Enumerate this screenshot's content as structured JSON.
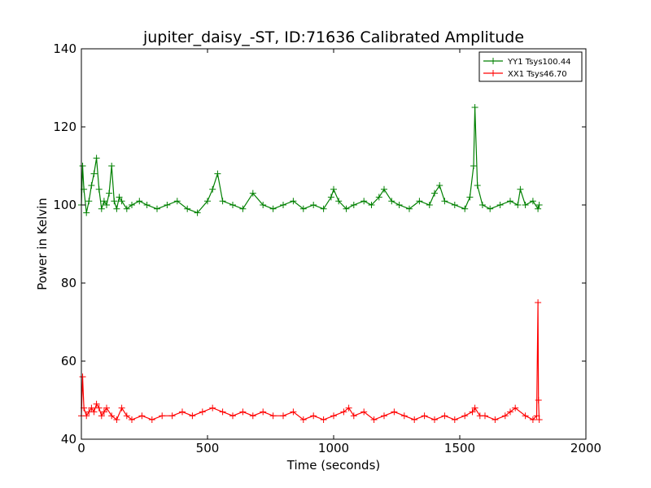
{
  "chart_data": {
    "type": "line",
    "title": "jupiter_daisy_-ST, ID:71636 Calibrated Amplitude",
    "xlabel": "Time (seconds)",
    "ylabel": "Power in Kelvin",
    "xlim": [
      0,
      2000
    ],
    "ylim": [
      40,
      140
    ],
    "xticks": [
      "0",
      "500",
      "1000",
      "1500",
      "2000"
    ],
    "yticks": [
      "40",
      "60",
      "80",
      "100",
      "120",
      "140"
    ],
    "grid": false,
    "legend_position": "top-right",
    "marker": "+",
    "series": [
      {
        "name": "YY1 Tsys100.44",
        "color": "#008000",
        "x": [
          0,
          5,
          10,
          20,
          30,
          40,
          50,
          60,
          70,
          80,
          90,
          100,
          110,
          120,
          130,
          140,
          150,
          160,
          180,
          200,
          230,
          260,
          300,
          340,
          380,
          420,
          460,
          500,
          520,
          540,
          560,
          600,
          640,
          680,
          720,
          760,
          800,
          840,
          880,
          920,
          960,
          990,
          1000,
          1020,
          1050,
          1080,
          1120,
          1150,
          1180,
          1200,
          1230,
          1260,
          1300,
          1340,
          1380,
          1400,
          1420,
          1440,
          1480,
          1520,
          1540,
          1555,
          1560,
          1570,
          1590,
          1620,
          1660,
          1700,
          1730,
          1740,
          1760,
          1790,
          1810,
          1815
        ],
        "y": [
          100,
          110,
          104,
          98,
          101,
          105,
          108,
          112,
          104,
          99,
          101,
          100,
          103,
          110,
          101,
          99,
          102,
          101,
          99,
          100,
          101,
          100,
          99,
          100,
          101,
          99,
          98,
          101,
          104,
          108,
          101,
          100,
          99,
          103,
          100,
          99,
          100,
          101,
          99,
          100,
          99,
          102,
          104,
          101,
          99,
          100,
          101,
          100,
          102,
          104,
          101,
          100,
          99,
          101,
          100,
          103,
          105,
          101,
          100,
          99,
          102,
          110,
          125,
          105,
          100,
          99,
          100,
          101,
          100,
          104,
          100,
          101,
          99,
          100
        ]
      },
      {
        "name": "XX1 Tsys46.70",
        "color": "#ff0000",
        "x": [
          0,
          5,
          10,
          20,
          30,
          40,
          50,
          60,
          70,
          80,
          90,
          100,
          120,
          140,
          160,
          180,
          200,
          240,
          280,
          320,
          360,
          400,
          440,
          480,
          520,
          560,
          600,
          640,
          680,
          720,
          760,
          800,
          840,
          880,
          920,
          960,
          1000,
          1040,
          1060,
          1080,
          1120,
          1160,
          1200,
          1240,
          1280,
          1320,
          1360,
          1400,
          1440,
          1480,
          1520,
          1550,
          1560,
          1580,
          1600,
          1640,
          1680,
          1700,
          1720,
          1760,
          1790,
          1805,
          1810,
          1812,
          1815
        ],
        "y": [
          46,
          56,
          48,
          46,
          47,
          48,
          47,
          49,
          48,
          46,
          47,
          48,
          46,
          45,
          48,
          46,
          45,
          46,
          45,
          46,
          46,
          47,
          46,
          47,
          48,
          47,
          46,
          47,
          46,
          47,
          46,
          46,
          47,
          45,
          46,
          45,
          46,
          47,
          48,
          46,
          47,
          45,
          46,
          47,
          46,
          45,
          46,
          45,
          46,
          45,
          46,
          47,
          48,
          46,
          46,
          45,
          46,
          47,
          48,
          46,
          45,
          46,
          75,
          50,
          45
        ]
      }
    ]
  }
}
